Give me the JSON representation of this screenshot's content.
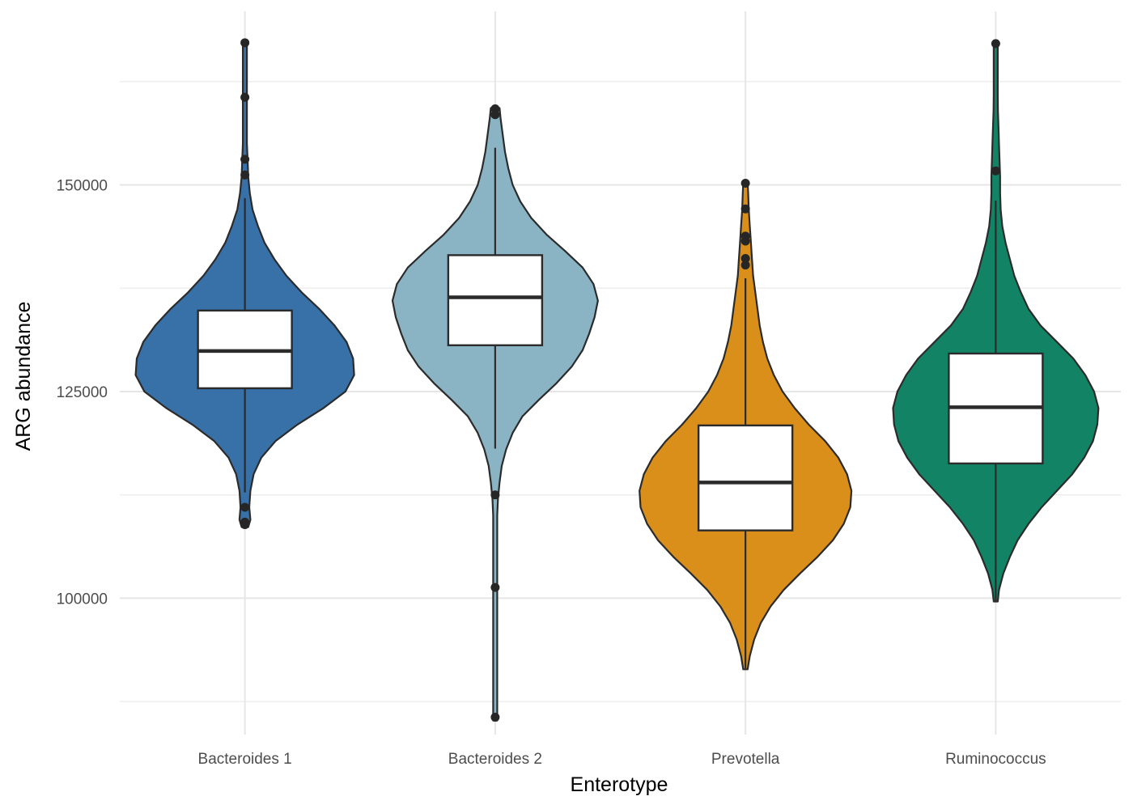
{
  "chart_data": {
    "type": "violin",
    "title": "",
    "xlabel": "Enterotype",
    "ylabel": "ARG abundance",
    "ylim": [
      83500,
      171000
    ],
    "yticks": [
      100000,
      125000,
      150000
    ],
    "yticks_minor": [
      87500,
      112500,
      137500,
      162500
    ],
    "grid": true,
    "legend": "none",
    "categories": [
      "Bacteroides 1",
      "Bacteroides 2",
      "Prevotella",
      "Ruminococcus"
    ],
    "series": [
      {
        "category": "Bacteroides 1",
        "color": "#3870A8",
        "box": {
          "q1": 125400,
          "median": 129900,
          "q3": 134800,
          "whisker_low": 112800,
          "whisker_high": 148400
        },
        "outliers": [
          167200,
          160600,
          153100,
          151200,
          111000,
          109200,
          108900
        ],
        "violin": [
          [
            108600,
            0.03
          ],
          [
            109500,
            0.05
          ],
          [
            111000,
            0.04
          ],
          [
            113000,
            0.05
          ],
          [
            115000,
            0.08
          ],
          [
            117000,
            0.15
          ],
          [
            119000,
            0.28
          ],
          [
            121000,
            0.48
          ],
          [
            123000,
            0.72
          ],
          [
            125000,
            0.92
          ],
          [
            127000,
            1.0
          ],
          [
            129000,
            0.99
          ],
          [
            131000,
            0.93
          ],
          [
            133000,
            0.82
          ],
          [
            135000,
            0.68
          ],
          [
            137000,
            0.52
          ],
          [
            139000,
            0.38
          ],
          [
            141000,
            0.27
          ],
          [
            143000,
            0.18
          ],
          [
            145000,
            0.12
          ],
          [
            147000,
            0.07
          ],
          [
            149000,
            0.045
          ],
          [
            151000,
            0.03
          ],
          [
            153000,
            0.025
          ],
          [
            155000,
            0.015
          ],
          [
            157000,
            0.012
          ],
          [
            159000,
            0.01
          ],
          [
            161000,
            0.01
          ],
          [
            163000,
            0.012
          ],
          [
            165000,
            0.012
          ],
          [
            167200,
            0.008
          ]
        ]
      },
      {
        "category": "Bacteroides 2",
        "color": "#8AB3C4",
        "box": {
          "q1": 130600,
          "median": 136400,
          "q3": 141500,
          "whisker_low": 118100,
          "whisker_high": 154500
        },
        "outliers": [
          159200,
          158500,
          112500,
          101300,
          85600
        ],
        "violin": [
          [
            85200,
            0.008
          ],
          [
            86000,
            0.01
          ],
          [
            88000,
            0.008
          ],
          [
            90000,
            0.006
          ],
          [
            94000,
            0.005
          ],
          [
            98000,
            0.006
          ],
          [
            102000,
            0.008
          ],
          [
            106000,
            0.01
          ],
          [
            110000,
            0.015
          ],
          [
            112000,
            0.025
          ],
          [
            114000,
            0.04
          ],
          [
            116000,
            0.06
          ],
          [
            118000,
            0.1
          ],
          [
            120000,
            0.16
          ],
          [
            122000,
            0.25
          ],
          [
            124000,
            0.4
          ],
          [
            126000,
            0.56
          ],
          [
            128000,
            0.7
          ],
          [
            130000,
            0.8
          ],
          [
            132000,
            0.86
          ],
          [
            134000,
            0.91
          ],
          [
            136000,
            0.94
          ],
          [
            138000,
            0.9
          ],
          [
            140000,
            0.8
          ],
          [
            142000,
            0.64
          ],
          [
            144000,
            0.47
          ],
          [
            146000,
            0.33
          ],
          [
            148000,
            0.23
          ],
          [
            150000,
            0.16
          ],
          [
            152000,
            0.12
          ],
          [
            154000,
            0.09
          ],
          [
            156000,
            0.07
          ],
          [
            158000,
            0.05
          ],
          [
            159300,
            0.04
          ]
        ]
      },
      {
        "category": "Prevotella",
        "color": "#D98F1A",
        "box": {
          "q1": 108200,
          "median": 114000,
          "q3": 120900,
          "whisker_low": 91500,
          "whisker_high": 138700
        },
        "outliers": [
          150200,
          147100,
          143800,
          143200,
          141100,
          140300
        ],
        "violin": [
          [
            91400,
            0.02
          ],
          [
            93000,
            0.04
          ],
          [
            95000,
            0.08
          ],
          [
            97000,
            0.14
          ],
          [
            99000,
            0.23
          ],
          [
            101000,
            0.35
          ],
          [
            103000,
            0.5
          ],
          [
            105000,
            0.66
          ],
          [
            107000,
            0.8
          ],
          [
            109000,
            0.9
          ],
          [
            111000,
            0.96
          ],
          [
            113000,
            0.97
          ],
          [
            115000,
            0.93
          ],
          [
            117000,
            0.85
          ],
          [
            119000,
            0.73
          ],
          [
            121000,
            0.58
          ],
          [
            123000,
            0.45
          ],
          [
            125000,
            0.34
          ],
          [
            127000,
            0.26
          ],
          [
            129000,
            0.2
          ],
          [
            131000,
            0.16
          ],
          [
            133000,
            0.13
          ],
          [
            135000,
            0.11
          ],
          [
            137000,
            0.09
          ],
          [
            139000,
            0.07
          ],
          [
            141000,
            0.06
          ],
          [
            143000,
            0.05
          ],
          [
            145000,
            0.04
          ],
          [
            147000,
            0.03
          ],
          [
            149000,
            0.025
          ],
          [
            150300,
            0.02
          ]
        ]
      },
      {
        "category": "Ruminococcus",
        "color": "#128465",
        "box": {
          "q1": 116300,
          "median": 123100,
          "q3": 129600,
          "whisker_low": 99700,
          "whisker_high": 148100
        },
        "outliers": [
          167100,
          151700
        ],
        "violin": [
          [
            99600,
            0.01
          ],
          [
            101000,
            0.03
          ],
          [
            103000,
            0.07
          ],
          [
            105000,
            0.13
          ],
          [
            107000,
            0.2
          ],
          [
            109000,
            0.3
          ],
          [
            111000,
            0.42
          ],
          [
            113000,
            0.56
          ],
          [
            115000,
            0.7
          ],
          [
            117000,
            0.81
          ],
          [
            119000,
            0.89
          ],
          [
            121000,
            0.93
          ],
          [
            123000,
            0.94
          ],
          [
            125000,
            0.9
          ],
          [
            127000,
            0.82
          ],
          [
            129000,
            0.71
          ],
          [
            131000,
            0.56
          ],
          [
            133000,
            0.41
          ],
          [
            135000,
            0.3
          ],
          [
            137000,
            0.23
          ],
          [
            139000,
            0.17
          ],
          [
            141000,
            0.13
          ],
          [
            143000,
            0.09
          ],
          [
            145000,
            0.06
          ],
          [
            147000,
            0.045
          ],
          [
            149000,
            0.04
          ],
          [
            151000,
            0.04
          ],
          [
            153000,
            0.035
          ],
          [
            155000,
            0.03
          ],
          [
            157000,
            0.025
          ],
          [
            159000,
            0.02
          ],
          [
            161000,
            0.018
          ],
          [
            163000,
            0.015
          ],
          [
            165000,
            0.012
          ],
          [
            167200,
            0.01
          ]
        ]
      }
    ]
  }
}
